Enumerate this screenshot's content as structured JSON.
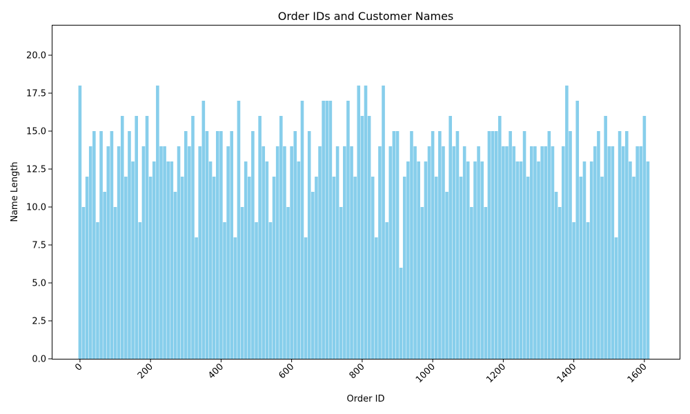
{
  "chart_data": {
    "type": "bar",
    "title": "Order IDs and Customer Names",
    "xlabel": "Order ID",
    "ylabel": "Name Length",
    "xlim": [
      -80,
      1700
    ],
    "ylim": [
      0,
      22
    ],
    "x_ticks": [
      0,
      200,
      400,
      600,
      800,
      1000,
      1200,
      1400,
      1600
    ],
    "y_ticks": [
      0.0,
      2.5,
      5.0,
      7.5,
      10.0,
      12.5,
      15.0,
      17.5,
      20.0
    ],
    "x_tick_labels": [
      "0",
      "200",
      "400",
      "600",
      "800",
      "1000",
      "1200",
      "1400",
      "1600"
    ],
    "y_tick_labels": [
      "0.0",
      "2.5",
      "5.0",
      "7.5",
      "10.0",
      "12.5",
      "15.0",
      "17.5",
      "20.0"
    ],
    "grid": false,
    "bar_color": "#87CEEB",
    "x": [
      0,
      10,
      20,
      30,
      40,
      50,
      60,
      70,
      80,
      90,
      100,
      110,
      120,
      130,
      140,
      150,
      160,
      170,
      180,
      190,
      200,
      210,
      220,
      230,
      240,
      250,
      260,
      270,
      280,
      290,
      300,
      310,
      320,
      330,
      340,
      350,
      360,
      370,
      380,
      390,
      400,
      410,
      420,
      430,
      440,
      450,
      460,
      470,
      480,
      490,
      500,
      510,
      520,
      530,
      540,
      550,
      560,
      570,
      580,
      590,
      600,
      610,
      620,
      630,
      640,
      650,
      660,
      670,
      680,
      690,
      700,
      710,
      720,
      730,
      740,
      750,
      760,
      770,
      780,
      790,
      800,
      810,
      820,
      830,
      840,
      850,
      860,
      870,
      880,
      890,
      900,
      910,
      920,
      930,
      940,
      950,
      960,
      970,
      980,
      990,
      1000,
      1010,
      1020,
      1030,
      1040,
      1050,
      1060,
      1070,
      1080,
      1090,
      1100,
      1110,
      1120,
      1130,
      1140,
      1150,
      1160,
      1170,
      1180,
      1190,
      1200,
      1210,
      1220,
      1230,
      1240,
      1250,
      1260,
      1270,
      1280,
      1290,
      1300,
      1310,
      1320,
      1330,
      1340,
      1350,
      1360,
      1370,
      1380,
      1390,
      1400,
      1410,
      1420,
      1430,
      1440,
      1450,
      1460,
      1470,
      1480,
      1490,
      1500,
      1510,
      1520,
      1530,
      1540,
      1550,
      1560,
      1570,
      1580,
      1590,
      1600,
      1610
    ],
    "values": [
      18,
      10,
      12,
      14,
      15,
      9,
      15,
      11,
      14,
      15,
      10,
      14,
      16,
      12,
      15,
      13,
      16,
      9,
      14,
      16,
      12,
      13,
      18,
      14,
      14,
      13,
      13,
      11,
      14,
      12,
      15,
      14,
      16,
      8,
      14,
      17,
      15,
      13,
      12,
      15,
      15,
      9,
      14,
      15,
      8,
      17,
      10,
      13,
      12,
      15,
      9,
      16,
      14,
      13,
      9,
      12,
      14,
      16,
      14,
      10,
      14,
      15,
      13,
      17,
      8,
      15,
      11,
      12,
      14,
      17,
      17,
      17,
      12,
      14,
      10,
      14,
      17,
      14,
      12,
      18,
      16,
      18,
      16,
      12,
      8,
      14,
      18,
      9,
      14,
      15,
      15,
      6,
      12,
      13,
      15,
      14,
      13,
      10,
      13,
      14,
      15,
      12,
      15,
      14,
      11,
      16,
      14,
      15,
      12,
      14,
      13,
      10,
      13,
      14,
      13,
      10,
      15,
      15,
      15,
      16,
      14,
      14,
      15,
      14,
      13,
      13,
      15,
      12,
      14,
      14,
      13,
      14,
      14,
      15,
      14,
      11,
      10,
      14,
      18,
      15,
      9,
      17,
      12,
      13,
      9,
      13,
      14,
      15,
      12,
      16,
      14,
      14,
      8,
      15,
      14,
      15,
      13,
      12,
      14,
      14,
      16,
      13
    ]
  }
}
